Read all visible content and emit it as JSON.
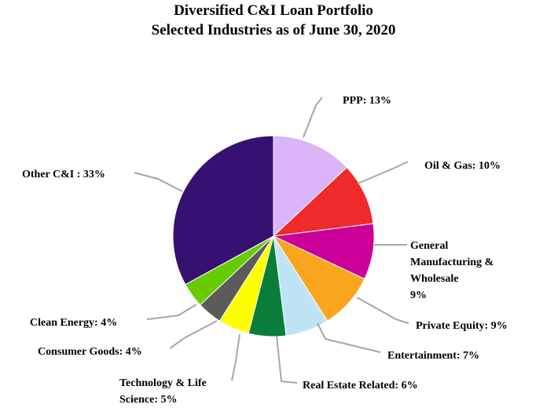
{
  "chart_data": {
    "type": "pie",
    "title": "Diversified C&I Loan Portfolio",
    "subtitle": "Selected Industries as of June 30, 2020",
    "slices": [
      {
        "name": "PPP",
        "label": "PPP: 13%",
        "value": 13,
        "color": "#dcb4f8"
      },
      {
        "name": "Oil & Gas",
        "label": "Oil & Gas: 10%",
        "value": 10,
        "color": "#ee2a2a"
      },
      {
        "name": "General Manufacturing & Wholesale",
        "label_lines": [
          "General",
          "Manufacturing &",
          "Wholesale",
          "9%"
        ],
        "value": 9,
        "color": "#cc0099"
      },
      {
        "name": "Private Equity",
        "label": "Private Equity: 9%",
        "value": 9,
        "color": "#f9a61e"
      },
      {
        "name": "Entertainment",
        "label": "Entertainment: 7%",
        "value": 7,
        "color": "#bfe4f8"
      },
      {
        "name": "Real Estate Related",
        "label": "Real Estate Related: 6%",
        "value": 6,
        "color": "#0a7d3b"
      },
      {
        "name": "Technology & Life Science",
        "label_lines": [
          "Technology & Life",
          "Science: 5%"
        ],
        "value": 5,
        "color": "#ffff00"
      },
      {
        "name": "Consumer Goods",
        "label": "Consumer Goods: 4%",
        "value": 4,
        "color": "#5b5b5b"
      },
      {
        "name": "Clean Energy",
        "label": "Clean Energy: 4%",
        "value": 4,
        "color": "#66cc00"
      },
      {
        "name": "Other C&I",
        "label": "Other C&I : 33%",
        "value": 33,
        "color": "#371172"
      }
    ]
  }
}
